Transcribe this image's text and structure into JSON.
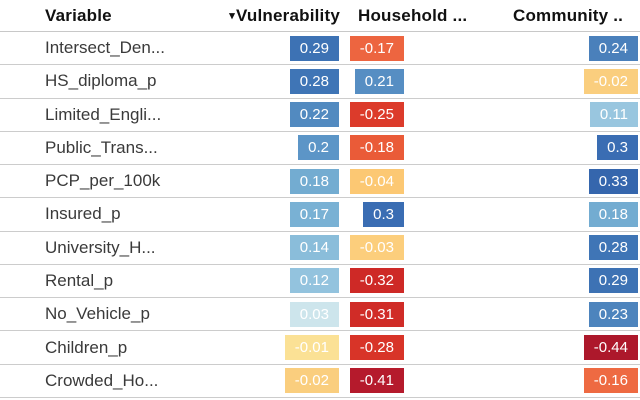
{
  "table": {
    "columns": [
      {
        "label": "Variable",
        "sorted": false
      },
      {
        "label": "Vulnerability",
        "sorted": true,
        "sort_icon": "▾"
      },
      {
        "label": "Household ...",
        "sorted": false
      },
      {
        "label": "Community ..",
        "sorted": false
      }
    ],
    "rows": [
      {
        "variable": "Intersect_Den...",
        "cells": [
          {
            "value": "0.29",
            "color": "#3d72b4"
          },
          {
            "value": "-0.17",
            "color": "#ed6540"
          },
          {
            "value": "0.24",
            "color": "#4a80bb"
          }
        ]
      },
      {
        "variable": "HS_diploma_p",
        "cells": [
          {
            "value": "0.28",
            "color": "#3f75b6"
          },
          {
            "value": "0.21",
            "color": "#568ec3"
          },
          {
            "value": "-0.02",
            "color": "#face7e"
          }
        ]
      },
      {
        "variable": "Limited_Engli...",
        "cells": [
          {
            "value": "0.22",
            "color": "#528ac0"
          },
          {
            "value": "-0.25",
            "color": "#dc3b2b"
          },
          {
            "value": "0.11",
            "color": "#99c6df"
          }
        ]
      },
      {
        "variable": "Public_Trans...",
        "cells": [
          {
            "value": "0.2",
            "color": "#5c95c7"
          },
          {
            "value": "-0.18",
            "color": "#ea5b38"
          },
          {
            "value": "0.3",
            "color": "#3a6db3"
          }
        ]
      },
      {
        "variable": "PCP_per_100k",
        "cells": [
          {
            "value": "0.18",
            "color": "#73acd1"
          },
          {
            "value": "-0.04",
            "color": "#fcc873"
          },
          {
            "value": "0.33",
            "color": "#3566ad"
          }
        ]
      },
      {
        "variable": "Insured_p",
        "cells": [
          {
            "value": "0.17",
            "color": "#79b1d4"
          },
          {
            "value": "0.3",
            "color": "#3a6db3"
          },
          {
            "value": "0.18",
            "color": "#73acd1"
          }
        ]
      },
      {
        "variable": "University_H...",
        "cells": [
          {
            "value": "0.14",
            "color": "#8abdda"
          },
          {
            "value": "-0.03",
            "color": "#fcce7c"
          },
          {
            "value": "0.28",
            "color": "#3f75b6"
          }
        ]
      },
      {
        "variable": "Rental_p",
        "cells": [
          {
            "value": "0.12",
            "color": "#93c3de"
          },
          {
            "value": "-0.32",
            "color": "#ce2926"
          },
          {
            "value": "0.29",
            "color": "#3d72b4"
          }
        ]
      },
      {
        "variable": "No_Vehicle_p",
        "cells": [
          {
            "value": "0.03",
            "color": "#cde5ec"
          },
          {
            "value": "-0.31",
            "color": "#d02c27"
          },
          {
            "value": "0.23",
            "color": "#4d84bd"
          }
        ]
      },
      {
        "variable": "Children_p",
        "cells": [
          {
            "value": "-0.01",
            "color": "#fbe195"
          },
          {
            "value": "-0.28",
            "color": "#d83428"
          },
          {
            "value": "-0.44",
            "color": "#ad182b"
          }
        ]
      },
      {
        "variable": "Crowded_Ho...",
        "cells": [
          {
            "value": "-0.02",
            "color": "#face7e"
          },
          {
            "value": "-0.41",
            "color": "#b51a2c"
          },
          {
            "value": "-0.16",
            "color": "#ee6a42"
          }
        ]
      }
    ]
  },
  "colors": {
    "separator": "#cccccc",
    "header_text": "#111111",
    "row_label_text": "#3a3a3a",
    "cell_value_text": "#ffffff",
    "background": "#ffffff"
  },
  "chart_data": {
    "type": "heatmap",
    "title": "",
    "rows": [
      "Intersect_Den...",
      "HS_diploma_p",
      "Limited_Engli...",
      "Public_Trans...",
      "PCP_per_100k",
      "Insured_p",
      "University_H...",
      "Rental_p",
      "No_Vehicle_p",
      "Children_p",
      "Crowded_Ho..."
    ],
    "columns": [
      "Vulnerability",
      "Household ...",
      "Community .."
    ],
    "values": [
      [
        0.29,
        -0.17,
        0.24
      ],
      [
        0.28,
        0.21,
        -0.02
      ],
      [
        0.22,
        -0.25,
        0.11
      ],
      [
        0.2,
        -0.18,
        0.3
      ],
      [
        0.18,
        -0.04,
        0.33
      ],
      [
        0.17,
        0.3,
        0.18
      ],
      [
        0.14,
        -0.03,
        0.28
      ],
      [
        0.12,
        -0.32,
        0.29
      ],
      [
        0.03,
        -0.31,
        0.23
      ],
      [
        -0.01,
        -0.28,
        -0.44
      ],
      [
        -0.02,
        -0.41,
        -0.16
      ]
    ],
    "value_range": [
      -0.44,
      0.33
    ],
    "colormap": "RdYlBu (blue = positive, red = negative)",
    "sort": {
      "column": "Vulnerability",
      "direction": "descending"
    },
    "legend": "none",
    "grid": "horizontal separators only"
  }
}
